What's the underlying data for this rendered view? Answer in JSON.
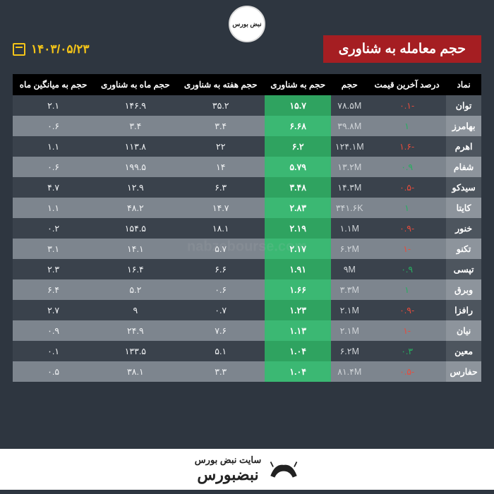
{
  "title": "حجم معامله به شناوری",
  "date": "۱۴۰۳/۰۵/۲۳",
  "logo_text": "نبض بورس",
  "watermark": "nabzebourse.com",
  "footer_top": "سایت نبض بورس",
  "footer_bottom": "نبضبورس",
  "colors": {
    "bg": "#2e3640",
    "title_bg": "#a51e22",
    "date": "#f5c518",
    "th_bg": "#000000",
    "row_odd": "#3a424c",
    "row_even": "#7d858e",
    "float_bg_odd": "#2fa360",
    "float_bg_even": "#3bb873",
    "neg": "#e74c3c",
    "pos": "#27ae60"
  },
  "columns": [
    "نماد",
    "درصد آخرین قیمت",
    "حجم",
    "حجم به شناوری",
    "حجم هفته به شناوری",
    "حجم ماه به شناوری",
    "حجم به میانگین ماه"
  ],
  "rows": [
    {
      "sym": "توان",
      "pct": "-۰.۱",
      "pct_sign": -1,
      "vol": "۷۸.۵M",
      "flt": "۱۵.۷",
      "wk": "۳۵.۲",
      "mo": "۱۴۶.۹",
      "avg": "۲.۱"
    },
    {
      "sym": "بهامرز",
      "pct": "۱",
      "pct_sign": 1,
      "vol": "۳۹.۸M",
      "flt": "۶.۶۸",
      "wk": "۳.۴",
      "mo": "۳.۴",
      "avg": "۰.۶"
    },
    {
      "sym": "اهرم",
      "pct": "-۱.۶",
      "pct_sign": -1,
      "vol": "۱۲۴.۱M",
      "flt": "۶.۲",
      "wk": "۲۲",
      "mo": "۱۱۳.۸",
      "avg": "۱.۱"
    },
    {
      "sym": "شفام",
      "pct": "۰.۹",
      "pct_sign": 1,
      "vol": "۱۳.۲M",
      "flt": "۵.۷۹",
      "wk": "۱۴",
      "mo": "۱۹۹.۵",
      "avg": "۰.۶"
    },
    {
      "sym": "سیدکو",
      "pct": "-۰.۵",
      "pct_sign": -1,
      "vol": "۱۴.۳M",
      "flt": "۳.۴۸",
      "wk": "۶.۳",
      "mo": "۱۲.۹",
      "avg": "۴.۷"
    },
    {
      "sym": "کایتا",
      "pct": "۱",
      "pct_sign": 1,
      "vol": "۳۴۱.۶K",
      "flt": "۲.۸۳",
      "wk": "۱۴.۷",
      "mo": "۴۸.۲",
      "avg": "۱.۱"
    },
    {
      "sym": "خنور",
      "pct": "-۰.۹",
      "pct_sign": -1,
      "vol": "۱.۱M",
      "flt": "۲.۱۹",
      "wk": "۱۸.۱",
      "mo": "۱۵۴.۵",
      "avg": "۰.۲"
    },
    {
      "sym": "تکنو",
      "pct": "-۱",
      "pct_sign": -1,
      "vol": "۶.۲M",
      "flt": "۲.۱۷",
      "wk": "۵.۷",
      "mo": "۱۴.۱",
      "avg": "۳.۱"
    },
    {
      "sym": "تپسی",
      "pct": "۰.۹",
      "pct_sign": 1,
      "vol": "۹M",
      "flt": "۱.۹۱",
      "wk": "۶.۶",
      "mo": "۱۶.۴",
      "avg": "۲.۳"
    },
    {
      "sym": "وبرق",
      "pct": "۱",
      "pct_sign": 1,
      "vol": "۳.۳M",
      "flt": "۱.۶۶",
      "wk": "۰.۶",
      "mo": "۵.۲",
      "avg": "۶.۴"
    },
    {
      "sym": "رافزا",
      "pct": "-۰.۹",
      "pct_sign": -1,
      "vol": "۲.۱M",
      "flt": "۱.۲۳",
      "wk": "۰.۷",
      "mo": "۹",
      "avg": "۲.۷"
    },
    {
      "sym": "نیان",
      "pct": "-۱",
      "pct_sign": -1,
      "vol": "۲.۱M",
      "flt": "۱.۱۳",
      "wk": "۷.۶",
      "mo": "۲۴.۹",
      "avg": "۰.۹"
    },
    {
      "sym": "معین",
      "pct": "۰.۳",
      "pct_sign": 1,
      "vol": "۶.۲M",
      "flt": "۱.۰۴",
      "wk": "۵.۱",
      "mo": "۱۳۳.۵",
      "avg": "۰.۱"
    },
    {
      "sym": "حفارس",
      "pct": "-۰.۵",
      "pct_sign": -1,
      "vol": "۸۱.۴M",
      "flt": "۱.۰۴",
      "wk": "۳.۳",
      "mo": "۳۸.۱",
      "avg": "۰.۵"
    }
  ]
}
